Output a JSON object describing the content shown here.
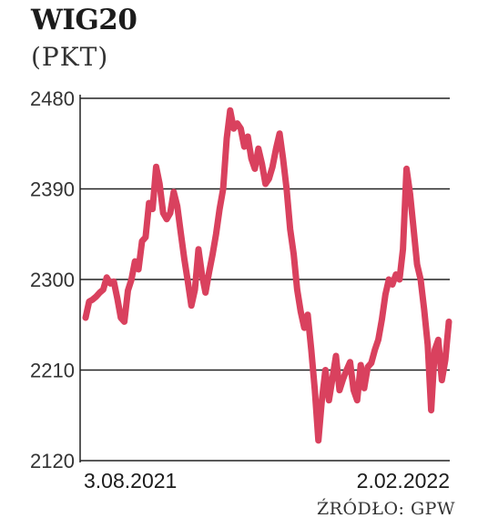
{
  "chart_data": {
    "type": "line",
    "title": "WIG20",
    "subtitle": "(PKT)",
    "source": "ŹRÓDŁO: GPW",
    "ylim": [
      2120,
      2480
    ],
    "yticks": [
      "2480",
      "2390",
      "2300",
      "2210",
      "2120"
    ],
    "ytick_values": [
      2480,
      2390,
      2300,
      2210,
      2120
    ],
    "x_labels": [
      "3.08.2021",
      "2.02.2022"
    ],
    "grid": "horizontal",
    "line_color": "#d9415e",
    "series": [
      {
        "values": [
          2262,
          2278,
          2280,
          2283,
          2287,
          2290,
          2302,
          2296,
          2298,
          2281,
          2262,
          2258,
          2289,
          2300,
          2318,
          2310,
          2338,
          2342,
          2376,
          2370,
          2412,
          2395,
          2366,
          2360,
          2366,
          2387,
          2373,
          2346,
          2320,
          2298,
          2274,
          2290,
          2330,
          2305,
          2287,
          2307,
          2325,
          2345,
          2370,
          2390,
          2440,
          2468,
          2450,
          2455,
          2450,
          2432,
          2442,
          2420,
          2410,
          2430,
          2415,
          2395,
          2400,
          2412,
          2430,
          2445,
          2420,
          2390,
          2350,
          2325,
          2290,
          2268,
          2252,
          2265,
          2230,
          2190,
          2140,
          2180,
          2210,
          2180,
          2202,
          2224,
          2190,
          2201,
          2210,
          2218,
          2190,
          2180,
          2215,
          2192,
          2213,
          2217,
          2230,
          2240,
          2260,
          2285,
          2300,
          2295,
          2305,
          2300,
          2330,
          2410,
          2385,
          2350,
          2315,
          2300,
          2270,
          2235,
          2170,
          2230,
          2240,
          2200,
          2220,
          2258
        ]
      }
    ]
  }
}
